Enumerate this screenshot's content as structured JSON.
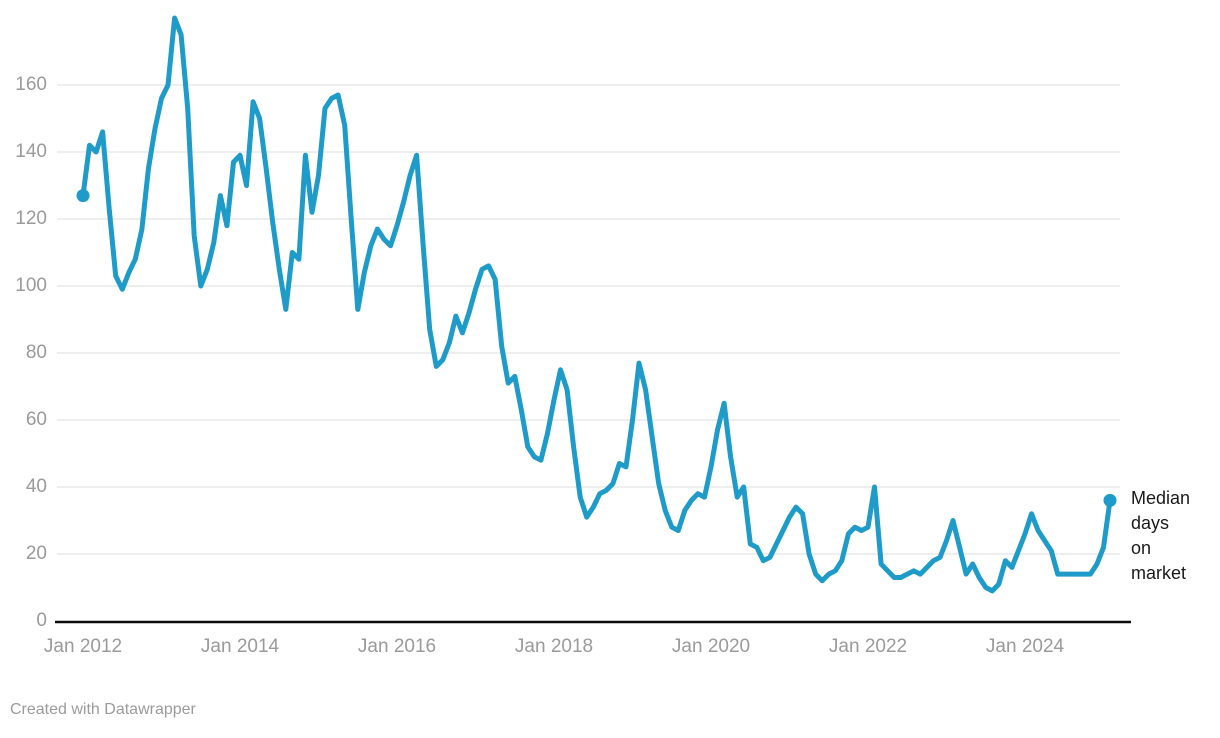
{
  "chart_data": {
    "type": "line",
    "title": "",
    "series": [
      {
        "name": "Median days on market",
        "start": "Jan 2012",
        "end": "Feb 2025",
        "frequency": "monthly",
        "values": [
          127,
          142,
          140,
          146,
          123,
          103,
          99,
          104,
          108,
          117,
          135,
          147,
          156,
          160,
          180,
          175,
          153,
          115,
          100,
          105,
          113,
          127,
          118,
          137,
          139,
          130,
          155,
          150,
          135,
          119,
          105,
          93,
          110,
          108,
          139,
          122,
          133,
          153,
          156,
          157,
          148,
          120,
          93,
          104,
          112,
          117,
          114,
          112,
          118,
          125,
          133,
          139,
          112,
          87,
          76,
          78,
          83,
          91,
          86,
          92,
          99,
          105,
          106,
          102,
          82,
          71,
          73,
          63,
          52,
          49,
          48,
          56,
          66,
          75,
          69,
          52,
          37,
          31,
          34,
          38,
          39,
          41,
          47,
          46,
          60,
          77,
          69,
          55,
          41,
          33,
          28,
          27,
          33,
          36,
          38,
          37,
          46,
          57,
          65,
          49,
          37,
          40,
          23,
          22,
          18,
          19,
          23,
          27,
          31,
          34,
          32,
          20,
          14,
          12,
          14,
          15,
          18,
          26,
          28,
          27,
          28,
          40,
          17,
          15,
          13,
          13,
          14,
          15,
          14,
          16,
          18,
          19,
          24,
          30,
          22,
          14,
          17,
          13,
          10,
          9,
          11,
          18,
          16,
          21,
          26,
          32,
          27,
          24,
          21,
          14,
          14,
          14,
          14,
          14,
          14,
          17,
          22,
          36
        ]
      }
    ],
    "x_tick_labels": [
      "Jan 2012",
      "Jan 2014",
      "Jan 2016",
      "Jan 2018",
      "Jan 2020",
      "Jan 2022",
      "Jan 2024"
    ],
    "y_tick_labels": [
      "0",
      "20",
      "40",
      "60",
      "80",
      "100",
      "120",
      "140",
      "160"
    ],
    "y_tick_values": [
      0,
      20,
      40,
      60,
      80,
      100,
      120,
      140,
      160
    ],
    "ylim": [
      0,
      183
    ],
    "grid": "horizontal",
    "legend_position": "end-of-line-label",
    "annotation_lines": [
      "Median",
      "days",
      "on",
      "market"
    ],
    "colors": {
      "line": "#1e9bc9",
      "grid": "#dddddd",
      "axis": "#0b0b0b",
      "tick_text": "#9a9a9a",
      "label_text": "#1a1a1a"
    }
  },
  "footer": {
    "attribution": "Created with Datawrapper"
  }
}
